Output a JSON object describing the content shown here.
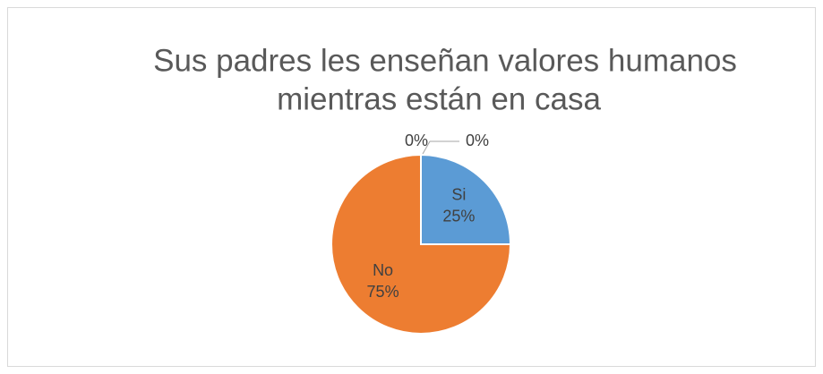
{
  "chart_data": {
    "type": "pie",
    "title": [
      "Sus padres les enseñan valores humanos",
      "mientras están en casa"
    ],
    "categories": [
      "Si",
      "No",
      null,
      null
    ],
    "values": [
      25,
      75,
      0,
      0
    ],
    "value_labels": [
      "25%",
      "75%",
      "0%",
      "0%"
    ],
    "colors": [
      "#5b9bd5",
      "#ed7d31",
      "#a5a5a5",
      "#ffc000"
    ]
  }
}
